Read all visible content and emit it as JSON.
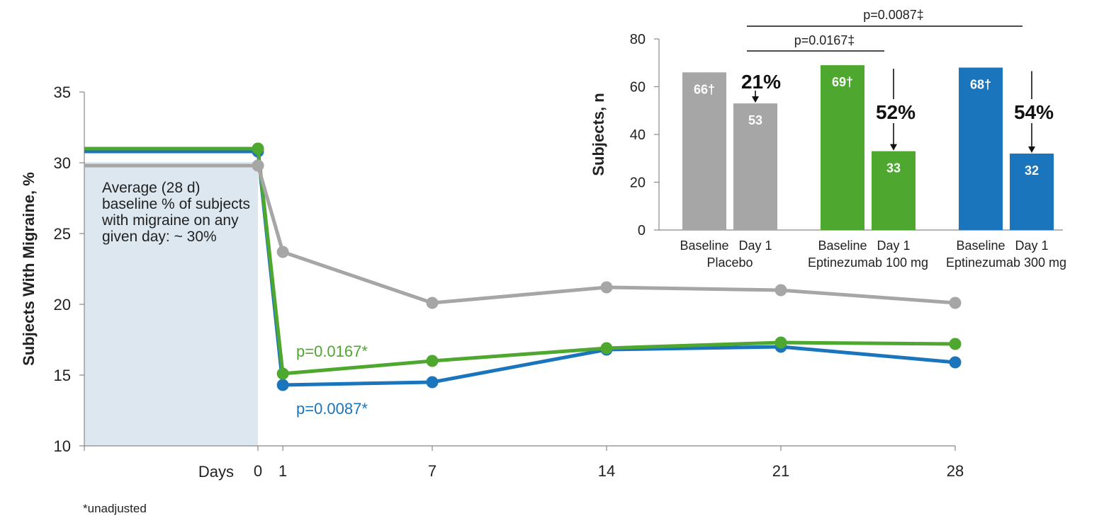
{
  "chart_data": [
    {
      "type": "line",
      "ylabel": "Subjects  With  Migraine, %",
      "xlabel": "Days",
      "ylim": [
        10,
        35
      ],
      "yticks": [
        10,
        15,
        20,
        25,
        30,
        35
      ],
      "xticks": [
        0,
        1,
        7,
        14,
        21,
        28
      ],
      "baseline_annotation": "Average (28 d) baseline % of subjects with migraine on any given day: ~ 30%",
      "series": [
        {
          "color": "#a6a6a6",
          "baseline": 29.8,
          "x": [
            0,
            1,
            7,
            14,
            21,
            28
          ],
          "values": [
            29.8,
            23.7,
            20.1,
            21.2,
            21.0,
            20.1
          ]
        },
        {
          "color": "#4ea72e",
          "baseline": 31.0,
          "x": [
            0,
            1,
            7,
            14,
            21,
            28
          ],
          "values": [
            31.0,
            15.1,
            16.0,
            16.9,
            17.3,
            17.2
          ]
        },
        {
          "color": "#1b75bc",
          "baseline": 30.8,
          "x": [
            0,
            1,
            7,
            14,
            21,
            28
          ],
          "values": [
            30.8,
            14.3,
            14.5,
            16.8,
            17.0,
            15.9
          ]
        }
      ],
      "annotations": [
        {
          "text": "p=0.0167*",
          "color": "#4ea72e"
        },
        {
          "text": "p=0.0087*",
          "color": "#1b75bc"
        }
      ],
      "footnote": "*unadjusted"
    },
    {
      "type": "bar",
      "ylabel": "Subjects, n",
      "ylim": [
        0,
        80
      ],
      "yticks": [
        0,
        20,
        40,
        60,
        80
      ],
      "groups": [
        {
          "name": "Placebo",
          "color": "#a6a6a6",
          "categories": [
            "Baseline",
            "Day 1"
          ],
          "values": [
            66,
            53
          ],
          "labels": [
            "66†",
            "53"
          ],
          "reduction": "21%"
        },
        {
          "name": "Eptinezumab 100 mg",
          "color": "#4ea72e",
          "categories": [
            "Baseline",
            "Day 1"
          ],
          "values": [
            69,
            33
          ],
          "labels": [
            "69†",
            "33"
          ],
          "reduction": "52%"
        },
        {
          "name": "Eptinezumab 300 mg",
          "color": "#1b75bc",
          "categories": [
            "Baseline",
            "Day 1"
          ],
          "values": [
            68,
            32
          ],
          "labels": [
            "68†",
            "32"
          ],
          "reduction": "54%"
        }
      ],
      "significance": [
        {
          "text": "p=0.0167‡",
          "from": "Placebo",
          "to": "Eptinezumab 100 mg"
        },
        {
          "text": "p=0.0087‡",
          "from": "Placebo",
          "to": "Eptinezumab 300 mg"
        }
      ]
    }
  ]
}
